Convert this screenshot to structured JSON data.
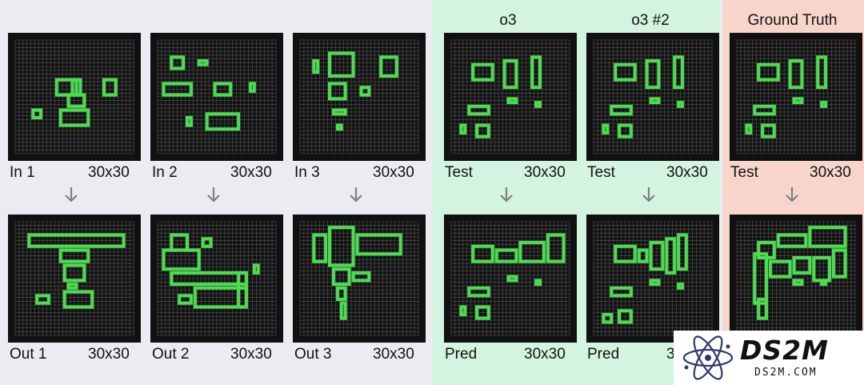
{
  "column_headers": {
    "o3": "o3",
    "o3_2": "o3 #2",
    "gt": "Ground Truth"
  },
  "panels": [
    {
      "id": "in1",
      "label": "In 1",
      "size": "30x30"
    },
    {
      "id": "in2",
      "label": "In 2",
      "size": "30x30"
    },
    {
      "id": "in3",
      "label": "In 3",
      "size": "30x30"
    },
    {
      "id": "test1",
      "label": "Test",
      "size": "30x30"
    },
    {
      "id": "test2",
      "label": "Test",
      "size": "30x30"
    },
    {
      "id": "test3",
      "label": "Test",
      "size": "30x30"
    },
    {
      "id": "out1",
      "label": "Out 1",
      "size": "30x30"
    },
    {
      "id": "out2",
      "label": "Out 2",
      "size": "30x30"
    },
    {
      "id": "out3",
      "label": "Out 3",
      "size": "30x30"
    },
    {
      "id": "pred1",
      "label": "Pred",
      "size": "30x30"
    },
    {
      "id": "pred2",
      "label": "Pred",
      "size": "30x30"
    }
  ],
  "logo": {
    "name": "DS2M",
    "url": "DS2M.COM",
    "icon": "atom-icon"
  },
  "colors": {
    "shape": "#4ade4f",
    "grid_bg": "#111111",
    "grid_line": "#555555",
    "o3_bg": "#d4f4e2",
    "gt_bg": "#f7d5cb",
    "arrow": "#808080"
  }
}
